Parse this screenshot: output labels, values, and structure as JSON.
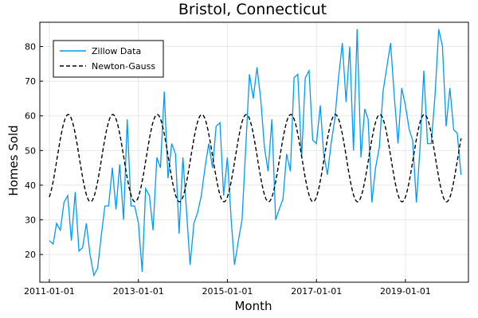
{
  "chart_data": {
    "type": "line",
    "title": "Bristol, Connecticut",
    "xlabel": "Month",
    "ylabel": "Homes Sold",
    "xlim": [
      "2010-10-15",
      "2020-06-01"
    ],
    "ylim": [
      12,
      87
    ],
    "x_ticks": [
      "2011-01-01",
      "2013-01-01",
      "2015-01-01",
      "2017-01-01",
      "2019-01-01"
    ],
    "y_ticks": [
      20,
      30,
      40,
      50,
      60,
      70,
      80
    ],
    "grid": true,
    "legend_position": "top-left",
    "series": [
      {
        "name": "Zillow Data",
        "color": "#009AF9",
        "style": "solid",
        "start": "2011-01-01",
        "values": [
          24,
          23,
          29,
          27,
          35,
          37,
          24,
          38,
          21,
          22,
          29,
          20,
          14,
          16,
          25,
          34,
          34,
          45,
          33,
          46,
          30,
          59,
          34,
          34,
          29,
          15,
          39,
          37,
          27,
          48,
          45,
          67,
          42,
          52,
          49,
          26,
          48,
          32,
          17,
          29,
          32,
          37,
          45,
          52,
          45,
          57,
          58,
          37,
          48,
          30,
          17,
          24,
          30,
          51,
          72,
          65,
          74,
          65,
          51,
          44,
          59,
          30,
          33,
          36,
          49,
          44,
          71,
          72,
          48,
          71,
          73,
          53,
          52,
          63,
          49,
          43,
          52,
          59,
          71,
          81,
          64,
          80,
          50,
          85,
          48,
          62,
          59,
          35,
          45,
          51,
          67,
          74,
          81,
          66,
          52,
          68,
          63,
          56,
          53,
          35,
          51,
          73,
          52,
          52,
          66,
          85,
          80,
          57,
          68,
          56,
          55,
          43
        ]
      },
      {
        "name": "Newton-Gauss",
        "color": "#000000",
        "style": "dashed",
        "model": "47.8 + 12.6 * sin(2*pi*(month-2.1)/12)",
        "start": "2011-01-01",
        "months": 112
      }
    ]
  }
}
